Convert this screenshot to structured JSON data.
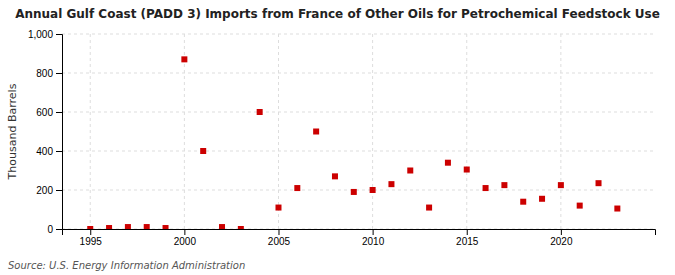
{
  "chart_data": {
    "type": "scatter",
    "title": "Annual Gulf Coast (PADD 3) Imports from France of Other Oils for Petrochemical Feedstock Use",
    "ylabel": "Thousand Barrels",
    "source": "Source: U.S. Energy Information Administration",
    "x": [
      1995,
      1996,
      1997,
      1998,
      1999,
      2000,
      2001,
      2002,
      2003,
      2004,
      2005,
      2006,
      2007,
      2008,
      2009,
      2010,
      2011,
      2012,
      2013,
      2014,
      2015,
      2016,
      2017,
      2018,
      2019,
      2020,
      2021,
      2022,
      2023
    ],
    "values": [
      0,
      5,
      10,
      10,
      5,
      870,
      400,
      10,
      0,
      600,
      110,
      210,
      500,
      270,
      190,
      200,
      230,
      300,
      110,
      340,
      305,
      210,
      225,
      140,
      155,
      225,
      120,
      235,
      105
    ],
    "color": "#cc0000",
    "marker": "square",
    "xlim": [
      1993.5,
      2025
    ],
    "xticks": [
      1995,
      2000,
      2005,
      2010,
      2015,
      2020
    ],
    "ylim": [
      0,
      1000
    ],
    "yticks": [
      0,
      200,
      400,
      600,
      800,
      {
        "value": 1000,
        "label": "1,000"
      }
    ],
    "grid": true
  }
}
